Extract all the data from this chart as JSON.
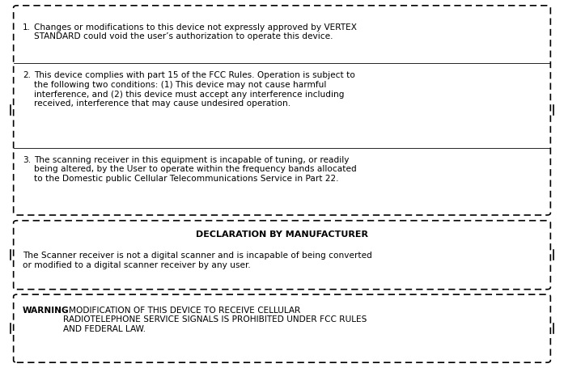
{
  "bg_color": "#ffffff",
  "border_color": "#000000",
  "text_color": "#000000",
  "fig_width": 6.97,
  "fig_height": 4.55,
  "box1": {
    "items": [
      {
        "number": "1.",
        "text": "Changes or modifications to this device not expressly approved by VERTEX\nSTANDARD could void the user’s authorization to operate this device."
      },
      {
        "number": "2.",
        "text": "This device complies with part 15 of the FCC Rules. Operation is subject to\nthe following two conditions: (1) This device may not cause harmful\ninterference, and (2) this device must accept any interference including\nreceived, interference that may cause undesired operation."
      },
      {
        "number": "3.",
        "text": "The scanning receiver in this equipment is incapable of tuning, or readily\nbeing altered, by the User to operate within the frequency bands allocated\nto the Domestic public Cellular Telecommunications Service in Part 22."
      }
    ]
  },
  "box2": {
    "title": "DECLARATION BY MANUFACTURER",
    "body": "The Scanner receiver is not a digital scanner and is incapable of being converted\nor modified to a digital scanner receiver by any user."
  },
  "box3": {
    "warning_label": "WARNING",
    "warning_text": ": MODIFICATION OF THIS DEVICE TO RECEIVE CELLULAR\nRADIOTELEPHONE SERVICE SIGNALS IS PROHIBITED UNDER FCC RULES\nAND FEDERAL LAW."
  }
}
